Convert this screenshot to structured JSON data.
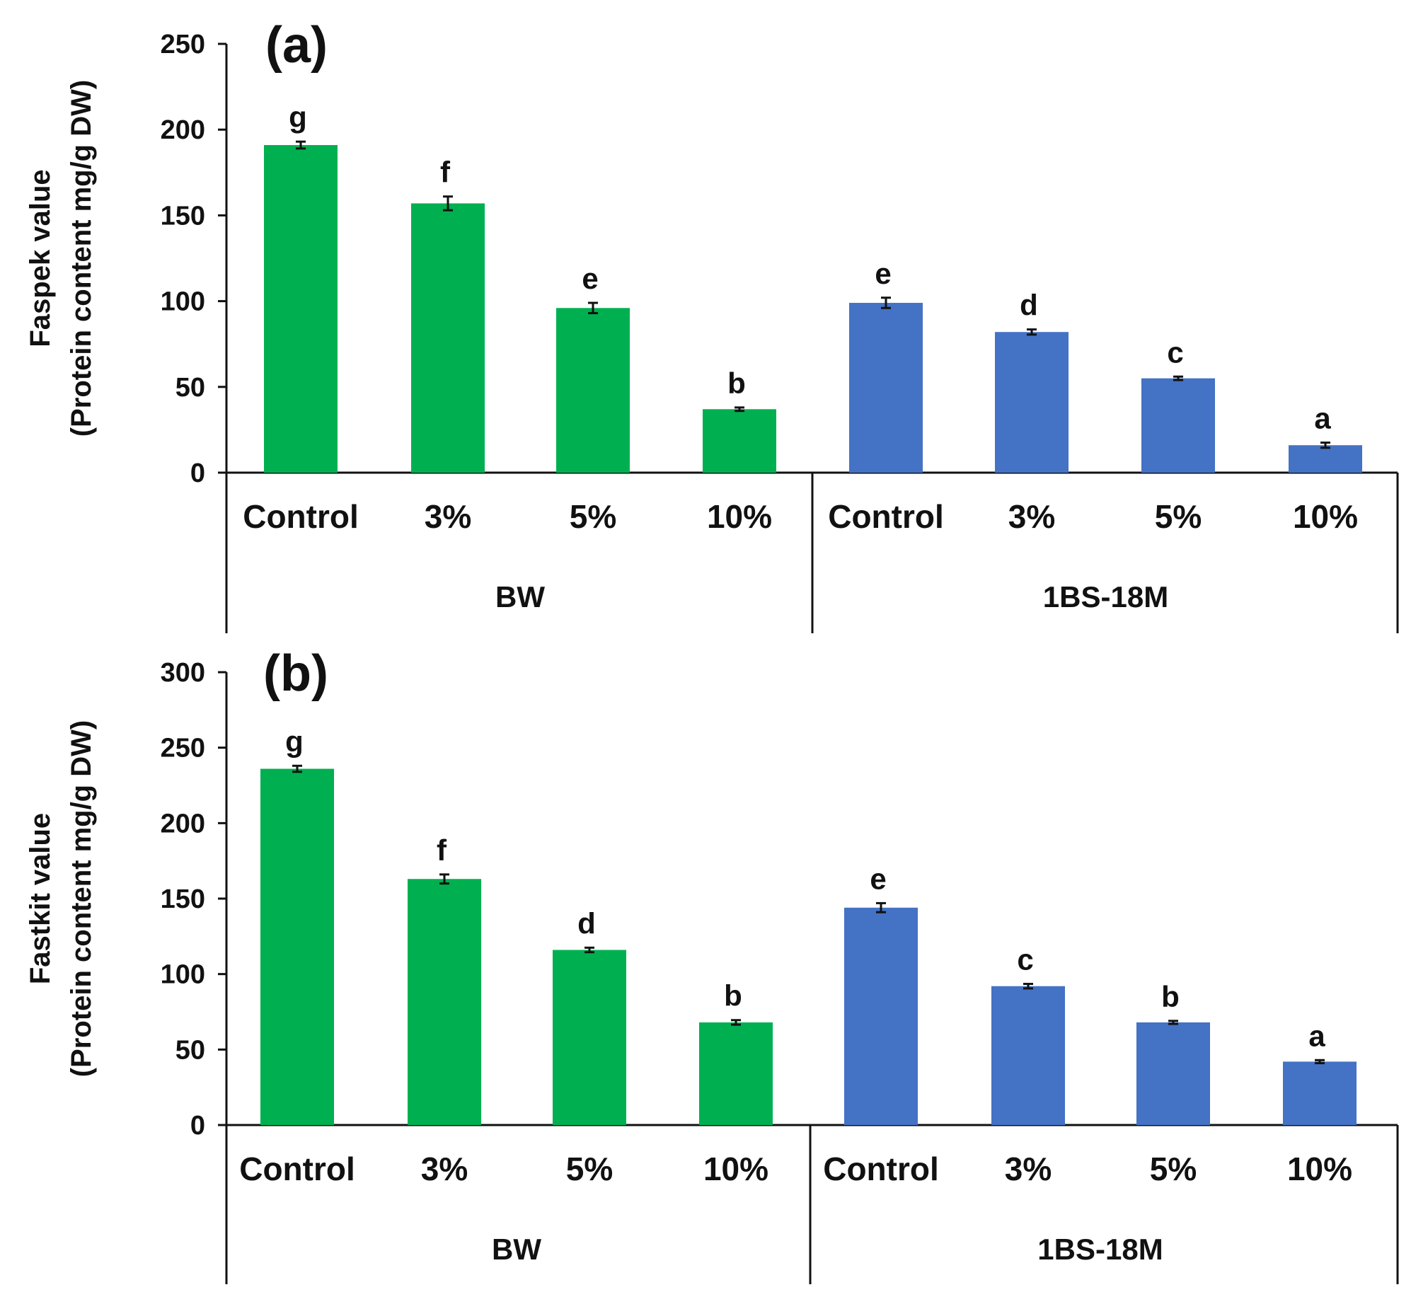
{
  "chart_data": [
    {
      "type": "bar",
      "panel_label": "(a)",
      "ylabel_line1": "Faspek value",
      "ylabel_line2": "(Protein content  mg/g DW)",
      "ylim": [
        0,
        250
      ],
      "yticks": [
        0,
        50,
        100,
        150,
        200,
        250
      ],
      "categories": [
        "Control",
        "3%",
        "5%",
        "10%",
        "Control",
        "3%",
        "5%",
        "10%"
      ],
      "groups": [
        {
          "name": "BW",
          "start": 0,
          "end": 4,
          "color": "#00b050"
        },
        {
          "name": "1BS-18M",
          "start": 4,
          "end": 8,
          "color": "#4472c4"
        }
      ],
      "values": [
        191,
        157,
        96,
        37,
        99,
        82,
        55,
        16
      ],
      "errors": [
        2,
        4,
        3,
        1,
        3,
        1.5,
        1,
        1.5
      ],
      "letters": [
        "g",
        "f",
        "e",
        "b",
        "e",
        "d",
        "c",
        "a"
      ]
    },
    {
      "type": "bar",
      "panel_label": "(b)",
      "ylabel_line1": "Fastkit value",
      "ylabel_line2": "(Protein content  mg/g DW)",
      "ylim": [
        0,
        300
      ],
      "yticks": [
        0,
        50,
        100,
        150,
        200,
        250,
        300
      ],
      "categories": [
        "Control",
        "3%",
        "5%",
        "10%",
        "Control",
        "3%",
        "5%",
        "10%"
      ],
      "groups": [
        {
          "name": "BW",
          "start": 0,
          "end": 4,
          "color": "#00b050"
        },
        {
          "name": "1BS-18M",
          "start": 4,
          "end": 8,
          "color": "#4472c4"
        }
      ],
      "values": [
        236,
        163,
        116,
        68,
        144,
        92,
        68,
        42
      ],
      "errors": [
        2,
        3,
        1.5,
        1.5,
        3,
        1.5,
        1,
        1
      ],
      "letters": [
        "g",
        "f",
        "d",
        "b",
        "e",
        "c",
        "b",
        "a"
      ]
    }
  ]
}
